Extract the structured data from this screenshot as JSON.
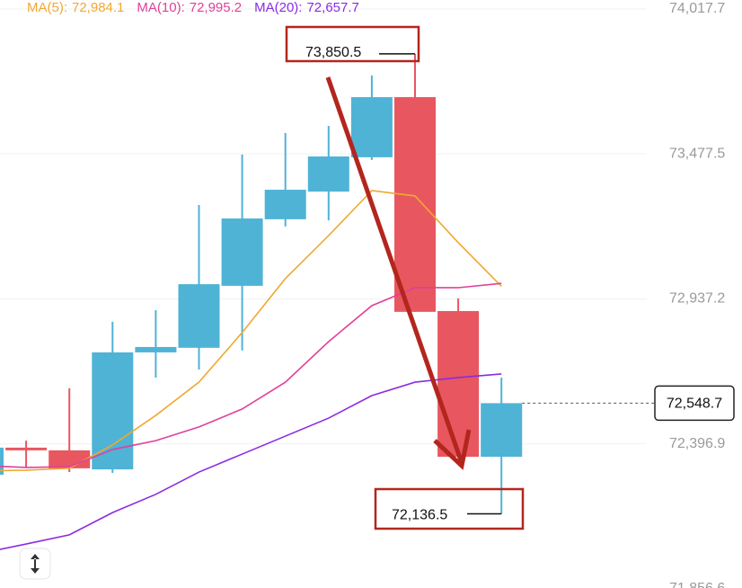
{
  "chart_data": {
    "type": "candlestick",
    "categories": [
      null,
      null,
      null,
      null,
      null,
      null,
      null,
      null,
      null,
      null,
      null,
      null,
      null
    ],
    "open": [
      72282,
      72383,
      72373,
      72302,
      72738,
      72755,
      72986,
      73234,
      73337,
      73465,
      73689,
      72892,
      72349
    ],
    "high": [
      72409,
      72409,
      72604,
      72852,
      72895,
      73287,
      73475,
      73555,
      73582,
      73770,
      73850.5,
      72939,
      72644
    ],
    "low": [
      72185,
      72309,
      72292,
      72289,
      72644,
      72674,
      72745,
      73207,
      73230,
      73455,
      72889,
      72349,
      72136.5
    ],
    "close": [
      72383,
      72373,
      72306,
      72738,
      72758,
      72992,
      73237,
      73344,
      73468,
      73689,
      72889,
      72349,
      72548.7
    ],
    "up_color": "#4fb3d6",
    "down_color": "#e8575f",
    "lines": [
      {
        "name": "MA(5):",
        "legend_value": "72,984.1",
        "color": "#f0a830",
        "values": [
          72296,
          72299,
          72306,
          72393,
          72503,
          72627,
          72812,
          73013,
          73173,
          73341,
          73321,
          73147,
          72984.1
        ]
      },
      {
        "name": "MA(10):",
        "legend_value": "72,995.2",
        "color": "#e0409a",
        "values": [
          72316,
          72309,
          72312,
          72376,
          72409,
          72460,
          72527,
          72627,
          72778,
          72912,
          72979,
          72979,
          72995.2
        ]
      },
      {
        "name": "MA(20):",
        "legend_value": "72,657.7",
        "color": "#8a2be2",
        "values": [
          71991,
          72024,
          72058,
          72141,
          72209,
          72292,
          72359,
          72426,
          72493,
          72577,
          72627,
          72644,
          72657.7
        ]
      }
    ],
    "ylim": [
      71860,
      74051
    ],
    "yticks": [
      {
        "value": 74017.7,
        "label": "74,017.7"
      },
      {
        "value": 73477.5,
        "label": "73,477.5"
      },
      {
        "value": 72937.2,
        "label": "72,937.2"
      },
      {
        "value": 72396.9,
        "label": "72,396.9"
      },
      {
        "value": 71856.6,
        "label": "71,856.6"
      }
    ],
    "grid": true,
    "high_marker": {
      "value": 73850.5,
      "label": "73,850.5"
    },
    "low_marker": {
      "value": 72136.5,
      "label": "72,136.5"
    },
    "last_price": {
      "value": 72548.7,
      "label": "72,548.7"
    }
  }
}
